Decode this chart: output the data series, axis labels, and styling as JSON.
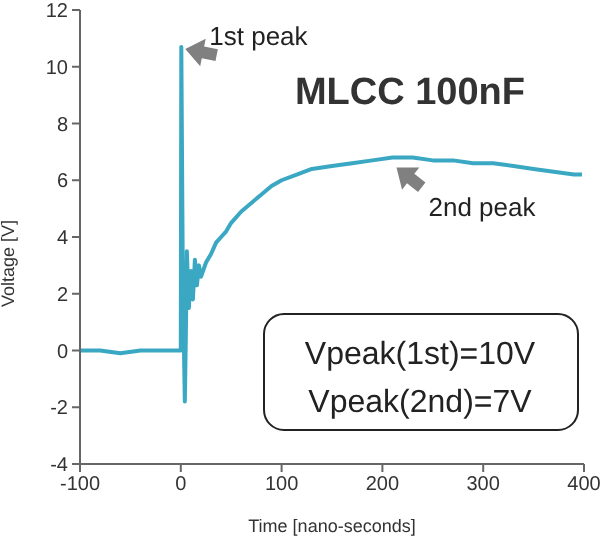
{
  "chart_data": {
    "type": "line",
    "title": "MLCC 100nF",
    "xlabel": "Time [nano-seconds]",
    "ylabel": "Voltage [V]",
    "x": [
      -100,
      -80,
      -60,
      -40,
      -20,
      -5,
      0,
      0.5,
      2,
      4,
      5,
      6,
      8,
      10,
      12,
      14,
      16,
      18,
      20,
      25,
      30,
      35,
      40,
      45,
      50,
      60,
      70,
      80,
      90,
      100,
      115,
      130,
      150,
      170,
      190,
      210,
      230,
      250,
      270,
      290,
      310,
      330,
      350,
      370,
      390,
      398
    ],
    "series": [
      {
        "color": "#3aa8c3",
        "values": [
          0,
          0,
          -0.1,
          0,
          0,
          0,
          0,
          10.7,
          2.5,
          -1.8,
          0.5,
          3.5,
          1.5,
          2.8,
          1.8,
          3.2,
          2.3,
          3,
          2.6,
          3.1,
          3.4,
          3.8,
          4,
          4.2,
          4.5,
          4.9,
          5.2,
          5.5,
          5.8,
          6,
          6.2,
          6.4,
          6.5,
          6.6,
          6.7,
          6.8,
          6.8,
          6.7,
          6.7,
          6.6,
          6.6,
          6.5,
          6.4,
          6.3,
          6.2,
          6.2
        ]
      }
    ],
    "xlim": [
      -100,
      400
    ],
    "xticks": [
      -100,
      0,
      100,
      200,
      300,
      400
    ],
    "ylim": [
      -4,
      12
    ],
    "yticks": [
      -4,
      -2,
      0,
      2,
      4,
      6,
      8,
      10,
      12
    ],
    "grid": false,
    "legend": false,
    "marker": "none",
    "line_style": "solid",
    "annotations": [
      {
        "text": "1st peak",
        "x": 0.5,
        "y": 10.7
      },
      {
        "text": "2nd peak",
        "x": 210,
        "y": 6.8
      },
      "Vpeak(1st)=10V",
      "Vpeak(2nd)=7V"
    ]
  }
}
